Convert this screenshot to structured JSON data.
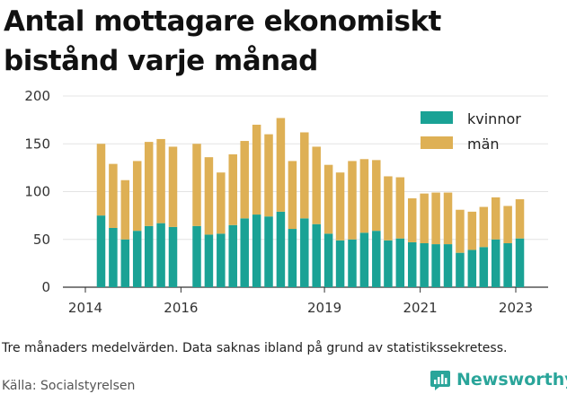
{
  "title": "Antal mottagare ekonomiskt bistånd varje månad",
  "note": "Tre månaders medelvärden. Data saknas ibland på grund av statistikssekretess.",
  "source": "Källa: Socialstyrelsen",
  "brand": "Newsworthy",
  "colors": {
    "kvinnor": "#1aa295",
    "man": "#deb055",
    "brand": "#2aa59a"
  },
  "chart_data": {
    "type": "bar",
    "stacked": true,
    "title": "Antal mottagare ekonomiskt bistånd varje månad",
    "xlabel": "",
    "ylabel": "",
    "ylim": [
      0,
      200
    ],
    "yticks": [
      "0",
      "50",
      "100",
      "150",
      "200"
    ],
    "xticks": [
      "2014",
      "2016",
      "2019",
      "2021",
      "2023"
    ],
    "grid": true,
    "legend": "top-right",
    "x": [
      "2014-05",
      "2014-08",
      "2014-11",
      "2015-02",
      "2015-05",
      "2015-08",
      "2015-11",
      "2016-05",
      "2016-08",
      "2016-11",
      "2017-02",
      "2017-05",
      "2017-08",
      "2017-11",
      "2018-02",
      "2018-05",
      "2018-08",
      "2018-11",
      "2019-02",
      "2019-05",
      "2019-08",
      "2019-11",
      "2020-02",
      "2020-05",
      "2020-08",
      "2020-11",
      "2021-02",
      "2021-05",
      "2021-08",
      "2021-11",
      "2022-02",
      "2022-05",
      "2022-08",
      "2022-11",
      "2023-02"
    ],
    "series": [
      {
        "name": "kvinnor",
        "values": [
          75,
          62,
          50,
          59,
          64,
          67,
          63,
          64,
          55,
          56,
          65,
          72,
          76,
          74,
          79,
          61,
          72,
          66,
          56,
          49,
          50,
          57,
          59,
          49,
          51,
          47,
          46,
          45,
          45,
          36,
          39,
          42,
          50,
          46,
          51
        ]
      },
      {
        "name": "män",
        "values": [
          75,
          67,
          62,
          73,
          88,
          88,
          84,
          86,
          81,
          64,
          74,
          81,
          94,
          86,
          98,
          71,
          90,
          81,
          72,
          71,
          82,
          77,
          74,
          67,
          64,
          46,
          52,
          54,
          54,
          45,
          40,
          42,
          44,
          39,
          41
        ]
      }
    ]
  }
}
